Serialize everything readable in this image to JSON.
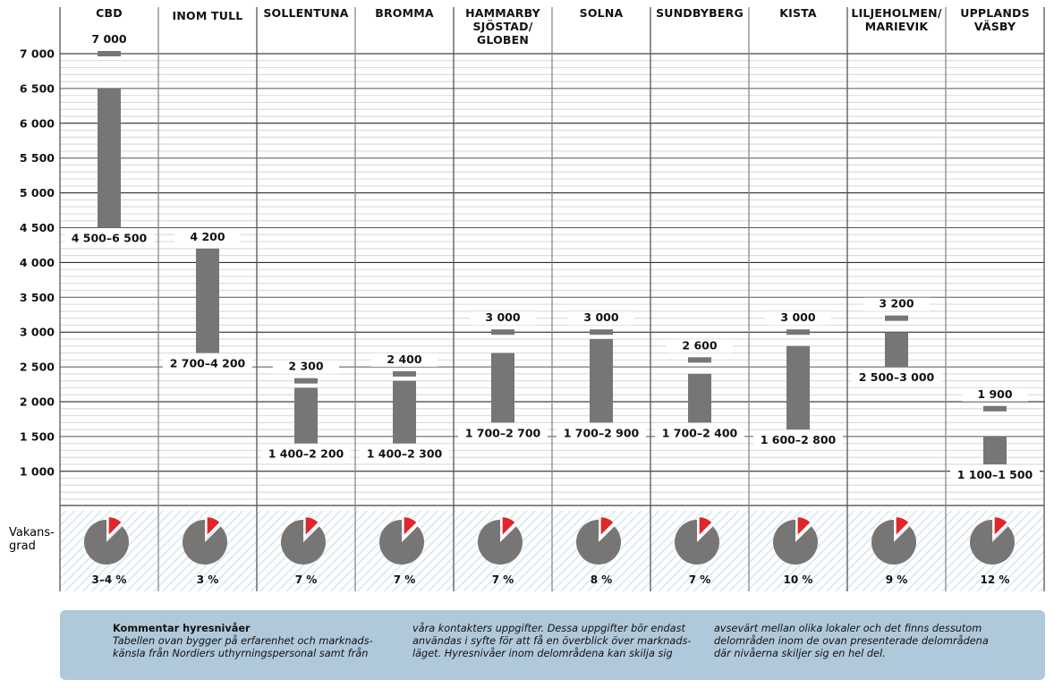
{
  "chart_data": {
    "type": "bar",
    "subtype": "floating-range",
    "title": "",
    "xlabel": "",
    "ylabel": "",
    "ylim": [
      500,
      7000
    ],
    "yticks": [
      7000,
      6500,
      6000,
      5500,
      5000,
      4500,
      4000,
      3500,
      3000,
      2500,
      2000,
      1500,
      1000
    ],
    "ytick_labels": [
      "7 000",
      "6 500",
      "6 000",
      "5 500",
      "5 000",
      "4 500",
      "4 000",
      "3 500",
      "3 000",
      "2 500",
      "2 000",
      "1 500",
      "1 000"
    ],
    "grid": true,
    "colors": {
      "bar": "#777674",
      "vacancy": "#e0262a",
      "pie_base": "#777674",
      "stripe": "#d6e6ef"
    },
    "categories": [
      {
        "name": "CBD",
        "lines": [
          "CBD"
        ],
        "range_low": 4500,
        "range_high": 6500,
        "range_label": "4 500–6 500",
        "peak": 7000,
        "peak_label": "7 000",
        "vacancy_label": "3–4 %",
        "vacancy": 3.5
      },
      {
        "name": "INOM TULL",
        "lines": [
          "INOM TULL"
        ],
        "range_low": 2700,
        "range_high": 4200,
        "range_label": "2 700–4 200",
        "peak": 4200,
        "peak_label": "4 200",
        "vacancy_label": "3 %",
        "vacancy": 3
      },
      {
        "name": "SOLLENTUNA",
        "lines": [
          "SOLLENTUNA"
        ],
        "range_low": 1400,
        "range_high": 2200,
        "range_label": "1 400–2 200",
        "peak": 2300,
        "peak_label": "2 300",
        "vacancy_label": "7 %",
        "vacancy": 7
      },
      {
        "name": "BROMMA",
        "lines": [
          "BROMMA"
        ],
        "range_low": 1400,
        "range_high": 2300,
        "range_label": "1 400–2 300",
        "peak": 2400,
        "peak_label": "2 400",
        "vacancy_label": "7 %",
        "vacancy": 7
      },
      {
        "name": "HAMMARBY SJÖSTAD/ GLOBEN",
        "lines": [
          "HAMMARBY",
          "SJÖSTAD/",
          "GLOBEN"
        ],
        "range_low": 1700,
        "range_high": 2700,
        "range_label": "1 700–2 700",
        "peak": 3000,
        "peak_label": "3 000",
        "vacancy_label": "7 %",
        "vacancy": 7
      },
      {
        "name": "SOLNA",
        "lines": [
          "SOLNA"
        ],
        "range_low": 1700,
        "range_high": 2900,
        "range_label": "1 700–2 900",
        "peak": 3000,
        "peak_label": "3 000",
        "vacancy_label": "8 %",
        "vacancy": 8
      },
      {
        "name": "SUNDBYBERG",
        "lines": [
          "SUNDBYBERG"
        ],
        "range_low": 1700,
        "range_high": 2400,
        "range_label": "1 700–2 400",
        "peak": 2600,
        "peak_label": "2 600",
        "vacancy_label": "7 %",
        "vacancy": 7
      },
      {
        "name": "KISTA",
        "lines": [
          "KISTA"
        ],
        "range_low": 1600,
        "range_high": 2800,
        "range_label": "1 600–2 800",
        "peak": 3000,
        "peak_label": "3 000",
        "vacancy_label": "10 %",
        "vacancy": 10
      },
      {
        "name": "LILJEHOLMEN/ MARIEVIK",
        "lines": [
          "LILJEHOLMEN/",
          "MARIEVIK"
        ],
        "range_low": 2500,
        "range_high": 3000,
        "range_label": "2 500–3 000",
        "peak": 3200,
        "peak_label": "3 200",
        "vacancy_label": "9 %",
        "vacancy": 9
      },
      {
        "name": "UPPLANDS VÄSBY",
        "lines": [
          "UPPLANDS",
          "VÄSBY"
        ],
        "range_low": 1100,
        "range_high": 1500,
        "range_label": "1 100–1 500",
        "peak": 1900,
        "peak_label": "1 900",
        "vacancy_label": "12 %",
        "vacancy": 12
      }
    ],
    "vacancy_row_label": [
      "Vakans-",
      "grad"
    ]
  },
  "comment": {
    "title": "Kommentar hyresnivåer",
    "col1": "Tabellen ovan bygger på erfarenhet och marknads-\nkänsla från Nordiers uthyrningspersonal samt från",
    "col2": "våra kontakters uppgifter. Dessa uppgifter bör endast\nanvändas i syfte för att få en överblick över marknads-\nläget. Hyresnivåer inom delområdena kan skilja sig",
    "col3": "avsevärt mellan olika lokaler och det finns dessutom\ndelområden inom de ovan presenterade delområdena\ndär nivåerna skiljer sig en hel del."
  }
}
